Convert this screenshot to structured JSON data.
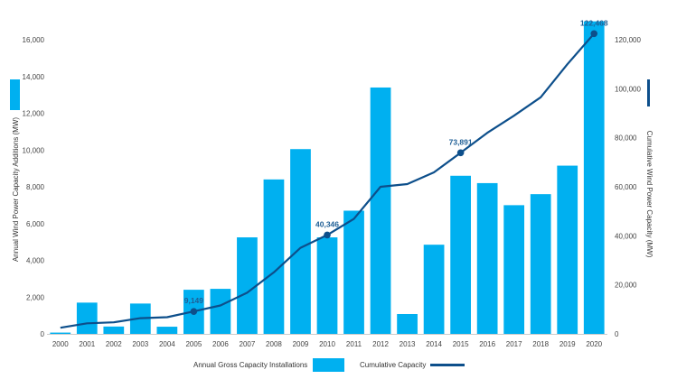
{
  "chart_data": {
    "type": "bar+line",
    "categories": [
      "2000",
      "2001",
      "2002",
      "2003",
      "2004",
      "2005",
      "2006",
      "2007",
      "2008",
      "2009",
      "2010",
      "2011",
      "2012",
      "2013",
      "2014",
      "2015",
      "2016",
      "2017",
      "2018",
      "2019",
      "2020"
    ],
    "series": [
      {
        "name": "Annual Gross Capacity Installations",
        "type": "bar",
        "axis": "left",
        "values": [
          70,
          1700,
          400,
          1650,
          390,
          2400,
          2450,
          5250,
          8400,
          10050,
          5250,
          6700,
          13400,
          1080,
          4850,
          8600,
          8200,
          7000,
          7600,
          9150,
          17000
        ]
      },
      {
        "name": "Cumulative Capacity",
        "type": "line",
        "axis": "right",
        "values": [
          2500,
          4300,
          4700,
          6400,
          6800,
          9149,
          11600,
          16800,
          25100,
          35100,
          40346,
          46900,
          60000,
          61100,
          65900,
          73891,
          82000,
          89000,
          96500,
          110000,
          122468
        ]
      }
    ],
    "callouts": [
      {
        "category": "2005",
        "label": "9,149"
      },
      {
        "category": "2010",
        "label": "40,346"
      },
      {
        "category": "2015",
        "label": "73,891"
      },
      {
        "category": "2020",
        "label": "122,468"
      }
    ],
    "left_axis": {
      "label": "Annual Wind Power Capacity Additions (MW)",
      "min": 0,
      "max": 16000,
      "step": 2000,
      "tick_labels": [
        "0",
        "2,000",
        "4,000",
        "6,000",
        "8,000",
        "10,000",
        "12,000",
        "14,000",
        "16,000"
      ]
    },
    "right_axis": {
      "label": "Cumulative Wind Power Capacity (MW)",
      "min": 0,
      "max": 120000,
      "step": 20000,
      "tick_labels": [
        "0",
        "20,000",
        "40,000",
        "60,000",
        "80,000",
        "100,000",
        "120,000"
      ]
    },
    "legend": {
      "placement": "bottom",
      "bar_label": "Annual Gross Capacity Installations",
      "line_label": "Cumulative Capacity"
    },
    "grid": false,
    "colors": {
      "bar": "#00b0f0",
      "line": "#0d4f8b",
      "callout_text": "#1f5f96"
    }
  }
}
